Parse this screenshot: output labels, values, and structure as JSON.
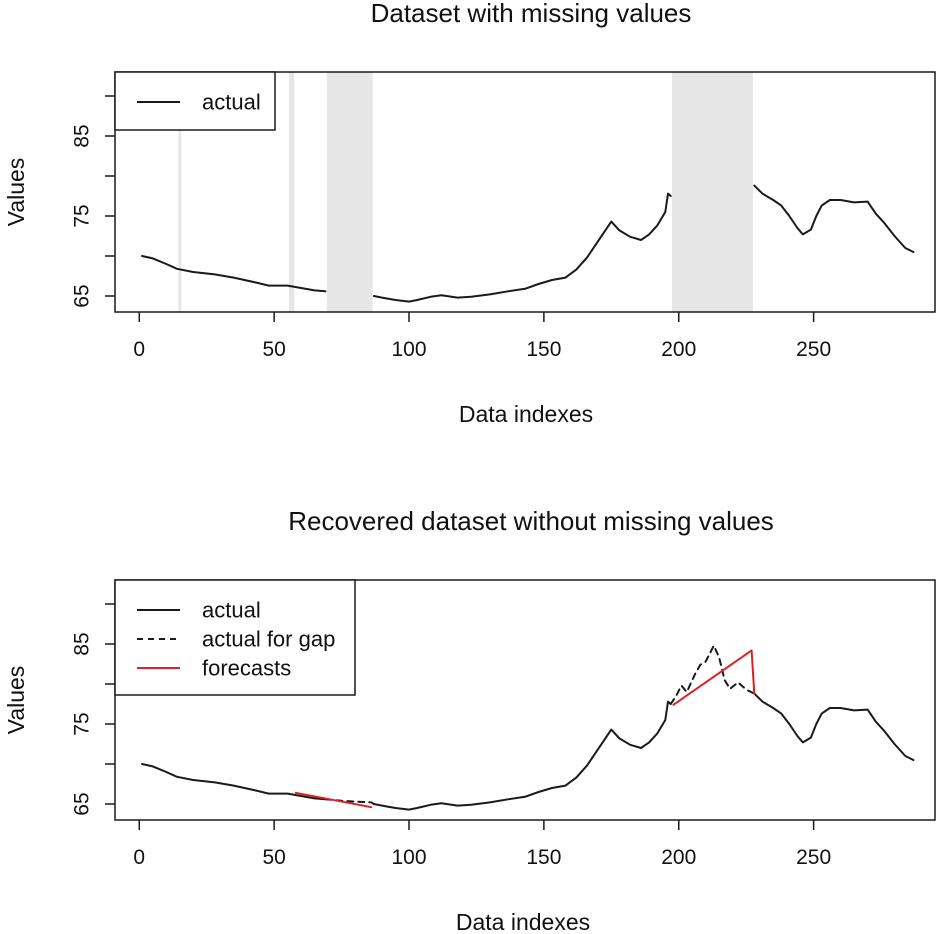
{
  "chart_data": [
    {
      "type": "line",
      "title": "Dataset with missing values",
      "xlabel": "Data indexes",
      "ylabel": "Values",
      "xlim": [
        -9,
        295
      ],
      "ylim": [
        63.0,
        93.0
      ],
      "xticks": [
        "0",
        "50",
        "100",
        "150",
        "200",
        "250"
      ],
      "yticks": [
        "65",
        "75",
        "85"
      ],
      "grid": false,
      "legend_position": "top-left",
      "legend": [
        {
          "label": "actual",
          "style": "solid",
          "color": "#1a1a1a"
        }
      ],
      "missing_gaps": [
        [
          15,
          15
        ],
        [
          56,
          57
        ],
        [
          70,
          86
        ],
        [
          198,
          227
        ]
      ],
      "gap_color": "#e6e6e6",
      "series": [
        {
          "name": "actual",
          "color": "#1a1a1a",
          "dash": "none",
          "x": [
            1,
            5,
            10,
            14,
            20,
            28,
            35,
            43,
            48,
            55,
            60,
            65,
            69
          ],
          "y": [
            70.0,
            69.7,
            69.0,
            68.4,
            68.0,
            67.7,
            67.3,
            66.7,
            66.3,
            66.3,
            66.0,
            65.7,
            65.6
          ]
        },
        {
          "name": "actual",
          "color": "#1a1a1a",
          "dash": "none",
          "x": [
            87,
            90,
            95,
            100,
            103,
            108,
            112,
            118,
            123,
            130,
            137,
            143,
            148,
            153,
            158,
            162,
            166,
            170,
            173,
            175,
            178,
            182,
            186,
            189,
            192,
            195,
            196,
            197
          ],
          "y": [
            65.0,
            64.8,
            64.5,
            64.3,
            64.5,
            64.9,
            65.1,
            64.8,
            64.9,
            65.2,
            65.6,
            65.9,
            66.5,
            67.0,
            67.3,
            68.3,
            69.8,
            71.8,
            73.3,
            74.3,
            73.2,
            72.4,
            72.0,
            72.7,
            73.8,
            75.5,
            77.8,
            77.5
          ]
        },
        {
          "name": "actual",
          "color": "#1a1a1a",
          "dash": "none",
          "x": [
            228,
            231,
            235,
            238,
            241,
            244,
            246,
            249,
            251,
            253,
            256,
            260,
            265,
            270,
            273,
            276,
            280,
            284,
            287
          ],
          "y": [
            78.8,
            77.8,
            77.0,
            76.3,
            75.0,
            73.5,
            72.7,
            73.3,
            75.0,
            76.3,
            77.0,
            77.0,
            76.7,
            76.8,
            75.3,
            74.2,
            72.5,
            71.0,
            70.5
          ]
        }
      ]
    },
    {
      "type": "line",
      "title": "Recovered dataset without missing values",
      "xlabel": "Data indexes",
      "ylabel": "Values",
      "xlim": [
        -9,
        295
      ],
      "ylim": [
        63.0,
        93.0
      ],
      "xticks": [
        "0",
        "50",
        "100",
        "150",
        "200",
        "250"
      ],
      "yticks": [
        "65",
        "75",
        "85"
      ],
      "grid": false,
      "legend_position": "top-left",
      "legend": [
        {
          "label": "actual",
          "style": "solid",
          "color": "#1a1a1a"
        },
        {
          "label": "actual for gap",
          "style": "dashed",
          "color": "#1a1a1a"
        },
        {
          "label": "forecasts",
          "style": "solid",
          "color": "#e02020"
        }
      ],
      "missing_gaps": [],
      "gap_color": "#e6e6e6",
      "series": [
        {
          "name": "actual",
          "color": "#1a1a1a",
          "dash": "none",
          "x": [
            1,
            5,
            10,
            14,
            20,
            28,
            35,
            43,
            48,
            55,
            60,
            65,
            69
          ],
          "y": [
            70.0,
            69.7,
            69.0,
            68.4,
            68.0,
            67.7,
            67.3,
            66.7,
            66.3,
            66.3,
            66.0,
            65.7,
            65.6
          ]
        },
        {
          "name": "actual",
          "color": "#1a1a1a",
          "dash": "none",
          "x": [
            87,
            90,
            95,
            100,
            103,
            108,
            112,
            118,
            123,
            130,
            137,
            143,
            148,
            153,
            158,
            162,
            166,
            170,
            173,
            175,
            178,
            182,
            186,
            189,
            192,
            195,
            196,
            197
          ],
          "y": [
            65.0,
            64.8,
            64.5,
            64.3,
            64.5,
            64.9,
            65.1,
            64.8,
            64.9,
            65.2,
            65.6,
            65.9,
            66.5,
            67.0,
            67.3,
            68.3,
            69.8,
            71.8,
            73.3,
            74.3,
            73.2,
            72.4,
            72.0,
            72.7,
            73.8,
            75.5,
            77.8,
            77.5
          ]
        },
        {
          "name": "actual",
          "color": "#1a1a1a",
          "dash": "none",
          "x": [
            228,
            231,
            235,
            238,
            241,
            244,
            246,
            249,
            251,
            253,
            256,
            260,
            265,
            270,
            273,
            276,
            280,
            284,
            287
          ],
          "y": [
            78.8,
            77.8,
            77.0,
            76.3,
            75.0,
            73.5,
            72.7,
            73.3,
            75.0,
            76.3,
            77.0,
            77.0,
            76.7,
            76.8,
            75.3,
            74.2,
            72.5,
            71.0,
            70.5
          ]
        },
        {
          "name": "actual for gap",
          "color": "#1a1a1a",
          "dash": "6,5",
          "x": [
            69,
            75,
            80,
            86,
            87
          ],
          "y": [
            65.6,
            65.4,
            65.3,
            65.2,
            65.0
          ]
        },
        {
          "name": "actual for gap",
          "color": "#1a1a1a",
          "dash": "6,5",
          "x": [
            197,
            199,
            201,
            203,
            206,
            208,
            210,
            213,
            215,
            217,
            219,
            222,
            225,
            228
          ],
          "y": [
            77.5,
            78.5,
            79.8,
            79.0,
            81.2,
            82.4,
            82.8,
            84.8,
            83.3,
            80.5,
            79.4,
            80.2,
            79.3,
            78.8
          ]
        },
        {
          "name": "forecasts",
          "color": "#e02020",
          "dash": "none",
          "x": [
            58,
            86
          ],
          "y": [
            66.4,
            64.6
          ]
        },
        {
          "name": "forecasts",
          "color": "#e02020",
          "dash": "none",
          "x": [
            198,
            227,
            228
          ],
          "y": [
            77.4,
            84.2,
            78.8
          ]
        }
      ]
    }
  ]
}
